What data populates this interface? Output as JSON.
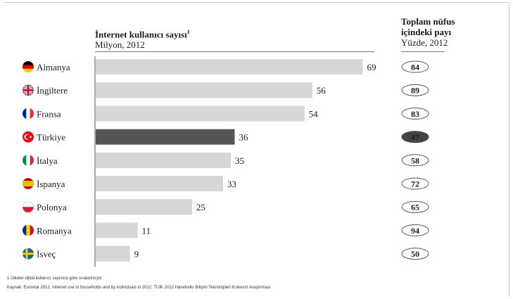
{
  "header": {
    "left_title": "İnternet kullanıcı sayısı",
    "left_title_sup": "1",
    "left_subtitle": "Milyon, 2012",
    "right_title_line1": "Toplam nüfus",
    "right_title_line2": "içindeki payı",
    "right_subtitle": "Yüzde, 2012"
  },
  "chart_data": {
    "type": "bar",
    "orientation": "horizontal",
    "categories": [
      "Almanya",
      "İngiltere",
      "Fransa",
      "Türkiye",
      "İtalya",
      "İspanya",
      "Polonya",
      "Romanya",
      "İsveç"
    ],
    "values": [
      69,
      56,
      54,
      36,
      35,
      33,
      25,
      11,
      9
    ],
    "share_percent": [
      84,
      89,
      83,
      47,
      58,
      72,
      65,
      94,
      50
    ],
    "highlight": "Türkiye",
    "colors": {
      "bar": "#d6d6d6",
      "highlight": "#555555",
      "pill_highlight": "#444444"
    },
    "xlim": [
      0,
      72
    ],
    "grid": false,
    "legend": "none"
  },
  "flags": [
    {
      "country": "Almanya",
      "icon": "germany-flag-icon",
      "colors": [
        "#000000",
        "#dd0000",
        "#ffcc00"
      ],
      "style": "h3"
    },
    {
      "country": "İngiltere",
      "icon": "uk-flag-icon",
      "colors": [
        "#012169",
        "#ffffff",
        "#c8102e"
      ],
      "style": "uk"
    },
    {
      "country": "Fransa",
      "icon": "france-flag-icon",
      "colors": [
        "#002395",
        "#ffffff",
        "#ed2939"
      ],
      "style": "v3"
    },
    {
      "country": "Türkiye",
      "icon": "turkey-flag-icon",
      "colors": [
        "#e30a17",
        "#ffffff"
      ],
      "style": "tr"
    },
    {
      "country": "İtalya",
      "icon": "italy-flag-icon",
      "colors": [
        "#009246",
        "#ffffff",
        "#ce2b37"
      ],
      "style": "v3"
    },
    {
      "country": "İspanya",
      "icon": "spain-flag-icon",
      "colors": [
        "#aa151b",
        "#f1bf00",
        "#aa151b"
      ],
      "style": "es"
    },
    {
      "country": "Polonya",
      "icon": "poland-flag-icon",
      "colors": [
        "#ffffff",
        "#dc143c"
      ],
      "style": "h2"
    },
    {
      "country": "Romanya",
      "icon": "romania-flag-icon",
      "colors": [
        "#002b7f",
        "#fcd116",
        "#ce1126"
      ],
      "style": "v3"
    },
    {
      "country": "İsveç",
      "icon": "sweden-flag-icon",
      "colors": [
        "#006aa7",
        "#fecc00"
      ],
      "style": "nordic"
    }
  ],
  "footnote": "1 Ülkeler dijital kullanıcı sayısına göre sıralanmıştır",
  "source": "Kaynak: Eurostat 2012, Internet use in households and by individuals in 2012; TÜİK 2012 Hanehalkı Bilişim Teknolojileri Kullanım Araştırması"
}
